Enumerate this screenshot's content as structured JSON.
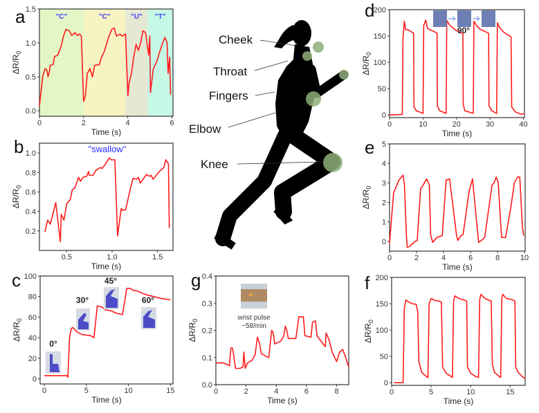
{
  "body_figure": {
    "labels": [
      "Cheek",
      "Throat",
      "Fingers",
      "Elbow",
      "Knee"
    ],
    "sensor_color": "#8fae7a"
  },
  "chart_data": [
    {
      "id": "a",
      "panel_label": "a",
      "type": "line",
      "xlabel": "Time (s)",
      "ylabel_main": "ΔR/R",
      "ylabel_sub": "0",
      "xlim": [
        0,
        6.05
      ],
      "ylim": [
        -0.08,
        1.5
      ],
      "xticks": [
        "0",
        "2",
        "4",
        "6"
      ],
      "yticks": [
        "0.0",
        "0.5",
        "1.0",
        "1.5"
      ],
      "line_color": "#ff1a1a",
      "regions": [
        {
          "from": 0,
          "to": 2,
          "color": "#e4f6c6",
          "label": "\"C\""
        },
        {
          "from": 2,
          "to": 3.9,
          "color": "#f7f3c2",
          "label": "\"C\""
        },
        {
          "from": 3.9,
          "to": 4.9,
          "color": "#e5e8d2",
          "label": "\"U\""
        },
        {
          "from": 4.9,
          "to": 6.05,
          "color": "#c6f8e6",
          "label": "\"T\""
        }
      ],
      "x": [
        0,
        0.15,
        0.26,
        0.34,
        0.39,
        0.44,
        0.49,
        0.62,
        0.68,
        0.83,
        0.99,
        1.09,
        1.2,
        1.35,
        1.46,
        1.61,
        1.72,
        1.82,
        1.9,
        2.0,
        2.08,
        2.17,
        2.29,
        2.4,
        2.5,
        2.71,
        2.81,
        2.92,
        3.13,
        3.28,
        3.39,
        3.49,
        3.65,
        3.75,
        3.9,
        4.01,
        4.06,
        4.17,
        4.27,
        4.38,
        4.48,
        4.58,
        4.69,
        4.81,
        4.95,
        5.0,
        5.03,
        5.16,
        5.31,
        5.42,
        5.57,
        5.68,
        5.78,
        5.83,
        5.9,
        5.94
      ],
      "y": [
        0.07,
        0.51,
        0.62,
        0.6,
        0.5,
        0.56,
        0.67,
        0.68,
        0.8,
        0.82,
        0.96,
        1.1,
        1.2,
        1.18,
        1.11,
        1.15,
        1.11,
        1.13,
        1.1,
        0.14,
        0.22,
        0.55,
        0.62,
        0.5,
        0.67,
        0.68,
        0.79,
        0.86,
        1.08,
        1.2,
        1.22,
        1.1,
        1.13,
        1.1,
        1.13,
        0.22,
        0.41,
        0.55,
        0.79,
        0.98,
        0.89,
        0.99,
        1.18,
        1.15,
        0.82,
        1.1,
        0.27,
        0.62,
        0.72,
        0.84,
        0.99,
        1.08,
        1.01,
        0.55,
        0.79,
        0.24
      ]
    },
    {
      "id": "b",
      "panel_label": "b",
      "type": "line",
      "xlabel": "Time (s)",
      "ylabel_main": "ΔR/R",
      "ylabel_sub": "0",
      "xlim": [
        0.2,
        1.67
      ],
      "ylim": [
        0,
        1.1
      ],
      "xticks": [
        "0.5",
        "1.0",
        "1.5"
      ],
      "yticks": [
        "0.2",
        "0.4",
        "0.6",
        "0.8",
        "1.0"
      ],
      "annotation": "\"swallow\"",
      "line_color": "#ff1a1a",
      "x": [
        0.26,
        0.29,
        0.32,
        0.38,
        0.43,
        0.44,
        0.47,
        0.5,
        0.54,
        0.56,
        0.59,
        0.63,
        0.65,
        0.68,
        0.72,
        0.74,
        0.75,
        0.79,
        0.82,
        0.87,
        0.89,
        0.93,
        0.97,
        0.99,
        1.03,
        1.06,
        1.1,
        1.12,
        1.15,
        1.2,
        1.23,
        1.27,
        1.29,
        1.31,
        1.38,
        1.41,
        1.43,
        1.45,
        1.53,
        1.57,
        1.59,
        1.62,
        1.63
      ],
      "y": [
        0.19,
        0.31,
        0.27,
        0.49,
        0.09,
        0.37,
        0.31,
        0.48,
        0.52,
        0.62,
        0.64,
        0.75,
        0.71,
        0.75,
        0.76,
        0.81,
        0.77,
        0.77,
        0.82,
        0.85,
        0.84,
        0.89,
        0.95,
        0.93,
        0.93,
        0.15,
        0.43,
        0.41,
        0.42,
        0.63,
        0.74,
        0.73,
        0.75,
        0.69,
        0.78,
        0.76,
        0.77,
        0.73,
        0.82,
        0.85,
        0.93,
        0.89,
        0.23
      ]
    },
    {
      "id": "c",
      "panel_label": "c",
      "type": "line",
      "xlabel": "Time (s)",
      "ylabel_main": "ΔR/R",
      "ylabel_sub": "0",
      "xlim": [
        -0.5,
        15.3
      ],
      "ylim": [
        -5,
        100
      ],
      "xticks": [
        "0",
        "5",
        "10",
        "15"
      ],
      "yticks": [
        "0",
        "20",
        "40",
        "60",
        "80",
        "100"
      ],
      "annotations": [
        "0°",
        "30°",
        "45°",
        "60°"
      ],
      "line_color": "#ff1a1a",
      "x": [
        0,
        2.7,
        2.8,
        3.0,
        3.2,
        3.4,
        3.8,
        4.5,
        5.5,
        5.9,
        6.3,
        6.8,
        7.3,
        8,
        8.5,
        9,
        9.3,
        9.8,
        10.2,
        10.6,
        11,
        12,
        13,
        14,
        15
      ],
      "y": [
        3,
        3,
        1.5,
        40,
        49,
        50,
        46,
        43,
        42,
        40,
        71,
        70,
        67,
        66,
        64,
        63,
        62.5,
        88,
        88,
        86,
        85.5,
        82,
        80,
        78,
        77
      ]
    },
    {
      "id": "g",
      "panel_label": "g",
      "type": "line",
      "xlabel": "Time (s)",
      "ylabel_main": "ΔR/R",
      "ylabel_sub": "0",
      "xlim": [
        0,
        8.8
      ],
      "ylim": [
        0,
        0.4
      ],
      "xticks": [
        "0",
        "2",
        "4",
        "6",
        "8"
      ],
      "yticks": [
        "0.0",
        "0.1",
        "0.2",
        "0.3",
        "0.4"
      ],
      "annotation_lines": [
        "wrist pulse",
        "~58/min"
      ],
      "line_color": "#ff1a1a",
      "x": [
        0,
        0.5,
        0.9,
        1.0,
        1.1,
        1.2,
        1.3,
        1.6,
        1.8,
        1.85,
        1.95,
        2.1,
        2.4,
        2.6,
        2.75,
        2.9,
        3.0,
        3.3,
        3.5,
        3.7,
        3.8,
        3.9,
        4.3,
        4.5,
        4.6,
        4.7,
        4.8,
        5.3,
        5.5,
        5.8,
        5.9,
        6.3,
        6.4,
        6.6,
        6.7,
        7.1,
        7.25,
        7.3,
        7.5,
        7.7,
        8.0,
        8.2,
        8.4,
        8.6,
        8.8
      ],
      "y": [
        0.08,
        0.08,
        0.07,
        0.135,
        0.135,
        0.1,
        0.06,
        0.06,
        0.065,
        0.12,
        0.06,
        0.08,
        0.09,
        0.11,
        0.175,
        0.15,
        0.115,
        0.105,
        0.1,
        0.2,
        0.19,
        0.15,
        0.16,
        0.18,
        0.215,
        0.2,
        0.17,
        0.17,
        0.25,
        0.25,
        0.18,
        0.175,
        0.23,
        0.235,
        0.18,
        0.15,
        0.14,
        0.19,
        0.165,
        0.12,
        0.085,
        0.12,
        0.13,
        0.1,
        0.065
      ]
    },
    {
      "id": "d",
      "panel_label": "d",
      "type": "line",
      "xlabel": "Time (s)",
      "ylabel_main": "ΔR/R",
      "ylabel_sub": "0",
      "xlim": [
        0,
        40.3
      ],
      "ylim": [
        -5,
        200
      ],
      "xticks": [
        "0",
        "10",
        "20",
        "30",
        "40"
      ],
      "yticks": [
        "0",
        "50",
        "100",
        "150",
        "200"
      ],
      "annotation": "90°",
      "line_color": "#ff1a1a",
      "x": [
        0,
        3.8,
        4.0,
        4.4,
        4.8,
        5.5,
        6.5,
        7.2,
        7.3,
        8,
        10,
        10.2,
        10.8,
        11.3,
        12,
        13.5,
        14.2,
        14.3,
        15,
        16.9,
        17.1,
        17.8,
        19,
        20,
        21,
        21.9,
        22,
        22.5,
        25,
        25.2,
        26,
        27,
        28,
        29,
        29.6,
        29.7,
        30.5,
        32,
        32.2,
        33,
        34,
        35,
        36,
        36.3,
        36.5,
        37.5,
        39,
        40.3
      ],
      "y": [
        0,
        1,
        145,
        178,
        162,
        162,
        158,
        155,
        15,
        8,
        3,
        170,
        180,
        165,
        162,
        158,
        155,
        17,
        8,
        3,
        180,
        172,
        165,
        160,
        157,
        155,
        20,
        8,
        3,
        178,
        170,
        163,
        160,
        157,
        155,
        18,
        8,
        3,
        175,
        165,
        158,
        153,
        150,
        148,
        15,
        6,
        2,
        2
      ]
    },
    {
      "id": "e",
      "panel_label": "e",
      "type": "line",
      "xlabel": "Time (s)",
      "ylabel_main": "ΔR/R",
      "ylabel_sub": "0",
      "xlim": [
        0,
        10.05
      ],
      "ylim": [
        -0.5,
        5
      ],
      "xticks": [
        "0",
        "2",
        "4",
        "6",
        "8",
        "10"
      ],
      "yticks": [
        "0",
        "1",
        "2",
        "3",
        "4",
        "5"
      ],
      "line_color": "#ff1a1a",
      "x": [
        0,
        0.3,
        0.7,
        1.0,
        1.1,
        1.25,
        1.3,
        1.5,
        1.9,
        2.05,
        2.3,
        2.5,
        2.75,
        2.95,
        3.05,
        3.2,
        3.5,
        3.9,
        4.2,
        4.45,
        4.95,
        5.05,
        5.3,
        5.45,
        5.9,
        6.15,
        6.6,
        6.9,
        7.05,
        7.6,
        7.75,
        7.9,
        8.05,
        8.3,
        8.6,
        9.0,
        9.25,
        9.5,
        9.65,
        9.85,
        9.95
      ],
      "y": [
        -0.1,
        2.5,
        3.15,
        3.4,
        2.9,
        0.3,
        -0.3,
        -0.25,
        0,
        0.05,
        2.7,
        2.9,
        3.2,
        2.9,
        0.3,
        -0.05,
        0.2,
        0.3,
        3.15,
        3.2,
        0.4,
        0.05,
        0.3,
        0.35,
        2.6,
        3.2,
        -0.05,
        0.1,
        0.2,
        2.9,
        3.0,
        3.3,
        3.05,
        0.2,
        0.2,
        1.8,
        3.0,
        3.3,
        3.3,
        0.7,
        0.3
      ]
    },
    {
      "id": "f",
      "panel_label": "f",
      "type": "line",
      "xlabel": "Time (s)",
      "ylabel_main": "ΔR/R",
      "ylabel_sub": "0",
      "xlim": [
        0,
        16.9
      ],
      "ylim": [
        -5,
        200
      ],
      "xticks": [
        "0",
        "5",
        "10",
        "15"
      ],
      "yticks": [
        "0",
        "50",
        "100",
        "150",
        "200"
      ],
      "line_color": "#ff1a1a",
      "x": [
        0.3,
        1.45,
        1.6,
        1.8,
        2.2,
        2.6,
        3.1,
        3.3,
        3.45,
        3.8,
        4.3,
        4.6,
        4.75,
        5.0,
        5.5,
        6.0,
        6.3,
        6.45,
        6.9,
        7.5,
        7.7,
        7.85,
        8.0,
        8.5,
        9.2,
        9.5,
        9.6,
        10.0,
        10.6,
        11.0,
        11.15,
        11.3,
        11.8,
        12.4,
        12.6,
        12.75,
        13.0,
        13.6,
        13.8,
        13.95,
        14.05,
        14.5,
        15.2,
        15.6,
        15.7,
        16.0,
        16.5,
        16.9
      ],
      "y": [
        0,
        0,
        140,
        157,
        153,
        150,
        149,
        135,
        40,
        20,
        13,
        10,
        150,
        160,
        156,
        155,
        153,
        30,
        18,
        12,
        10,
        155,
        165,
        160,
        157,
        155,
        30,
        18,
        12,
        10,
        158,
        168,
        160,
        156,
        155,
        35,
        20,
        12,
        10,
        160,
        168,
        160,
        158,
        155,
        30,
        20,
        12,
        8
      ]
    }
  ]
}
